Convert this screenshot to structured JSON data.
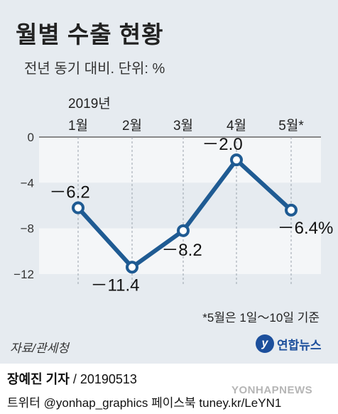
{
  "header": {
    "title": "월별 수출 현황",
    "subtitle": "전년 동기 대비. 단위: %"
  },
  "chart_data": {
    "type": "line",
    "year_label": "2019년",
    "categories": [
      "1월",
      "2월",
      "3월",
      "4월",
      "5월*"
    ],
    "series": [
      {
        "values": [
          -6.2,
          -11.4,
          -8.2,
          -2.0,
          -6.4
        ]
      }
    ],
    "data_labels": [
      "－6.2",
      "－11.4",
      "－8.2",
      "－2.0",
      "－6.4%"
    ],
    "yticks": [
      0,
      -4,
      -8,
      -12
    ],
    "ytick_labels": [
      "0",
      "−4",
      "−8",
      "−12"
    ],
    "ylim": [
      -13,
      0
    ],
    "xlabel": "",
    "ylabel": "",
    "line_color": "#1f5b93",
    "marker_fill": "#ffffff",
    "band_color": "#f4f6f8",
    "grid": false
  },
  "footer": {
    "footnote": "*5월은 1일～10일 기준",
    "source": "자료/관세청",
    "logo_mark": "y",
    "logo_text": "연합뉴스",
    "reporter": "장예진 기자",
    "date": " / 20190513",
    "social": "트위터 @yonhap_graphics  페이스북 tuney.kr/LeYN1",
    "watermark": "YONHAPNEWS"
  }
}
